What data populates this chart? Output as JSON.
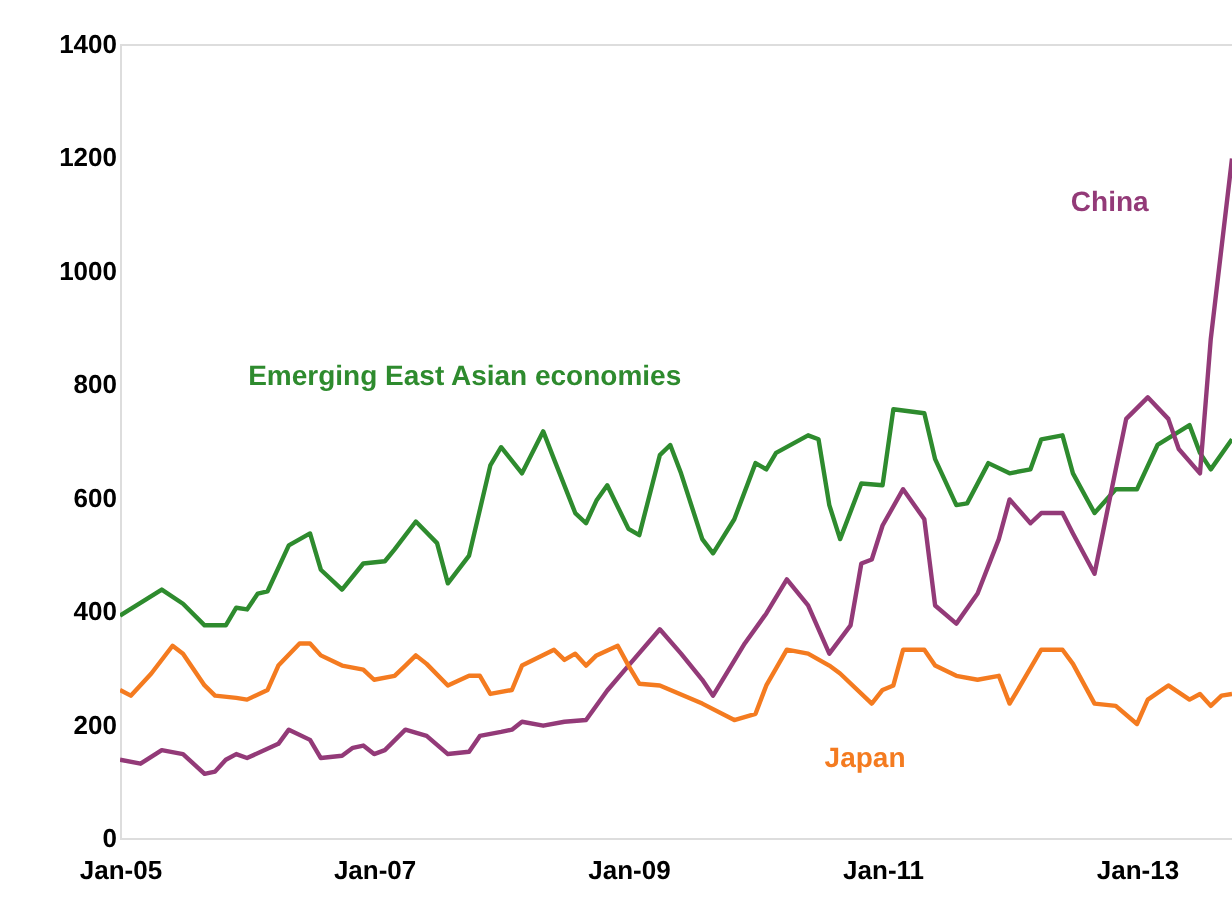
{
  "chart_data": {
    "type": "line",
    "grid": false,
    "marker": "none",
    "line_style": "solid",
    "xlim": [
      "2005-01",
      "2013-10"
    ],
    "xticks": [
      {
        "value": "2005-01",
        "label": "Jan-05"
      },
      {
        "value": "2007-01",
        "label": "Jan-07"
      },
      {
        "value": "2009-01",
        "label": "Jan-09"
      },
      {
        "value": "2011-01",
        "label": "Jan-11"
      },
      {
        "value": "2013-01",
        "label": "Jan-13"
      }
    ],
    "ylim": [
      0,
      1400
    ],
    "yticks": [
      0,
      200,
      400,
      600,
      800,
      1000,
      1200,
      1400
    ],
    "series": [
      {
        "name": "Emerging East Asian economies",
        "color": "#2e8b2e",
        "x": [
          "2005-01",
          "2005-05",
          "2005-07",
          "2005-09",
          "2005-11",
          "2005-12",
          "2006-01",
          "2006-02",
          "2006-03",
          "2006-05",
          "2006-07",
          "2006-08",
          "2006-10",
          "2006-12",
          "2007-02",
          "2007-03",
          "2007-05",
          "2007-07",
          "2007-08",
          "2007-10",
          "2007-12",
          "2008-01",
          "2008-03",
          "2008-05",
          "2008-06",
          "2008-08",
          "2008-09",
          "2008-10",
          "2008-11",
          "2009-01",
          "2009-02",
          "2009-04",
          "2009-05",
          "2009-06",
          "2009-08",
          "2009-09",
          "2009-11",
          "2010-01",
          "2010-02",
          "2010-03",
          "2010-06",
          "2010-07",
          "2010-08",
          "2010-09",
          "2010-11",
          "2011-01",
          "2011-02",
          "2011-05",
          "2011-06",
          "2011-08",
          "2011-09",
          "2011-11",
          "2012-01",
          "2012-03",
          "2012-04",
          "2012-06",
          "2012-07",
          "2012-09",
          "2012-11",
          "2013-01",
          "2013-03",
          "2013-06",
          "2013-07",
          "2013-08",
          "2013-10"
        ],
        "values": [
          392,
          438,
          413,
          375,
          375,
          406,
          403,
          431,
          435,
          516,
          537,
          473,
          438,
          484,
          488,
          509,
          558,
          520,
          449,
          498,
          657,
          689,
          643,
          717,
          668,
          573,
          555,
          595,
          622,
          545,
          534,
          675,
          693,
          643,
          527,
          502,
          562,
          661,
          650,
          679,
          710,
          703,
          587,
          527,
          625,
          622,
          756,
          749,
          668,
          587,
          590,
          661,
          643,
          650,
          703,
          710,
          643,
          573,
          615,
          615,
          693,
          728,
          679,
          650,
          703
        ]
      },
      {
        "name": "China",
        "color": "#933a78",
        "x": [
          "2005-01",
          "2005-03",
          "2005-05",
          "2005-07",
          "2005-09",
          "2005-10",
          "2005-11",
          "2005-12",
          "2006-01",
          "2006-04",
          "2006-05",
          "2006-07",
          "2006-08",
          "2006-10",
          "2006-11",
          "2006-12",
          "2007-01",
          "2007-02",
          "2007-04",
          "2007-06",
          "2007-08",
          "2007-10",
          "2007-11",
          "2008-01",
          "2008-02",
          "2008-03",
          "2008-05",
          "2008-07",
          "2008-09",
          "2008-11",
          "2009-01",
          "2009-04",
          "2009-06",
          "2009-08",
          "2009-09",
          "2009-12",
          "2010-02",
          "2010-04",
          "2010-06",
          "2010-08",
          "2010-10",
          "2010-11",
          "2010-12",
          "2011-01",
          "2011-03",
          "2011-05",
          "2011-06",
          "2011-08",
          "2011-10",
          "2011-12",
          "2012-01",
          "2012-03",
          "2012-04",
          "2012-06",
          "2012-07",
          "2012-09",
          "2012-11",
          "2012-12",
          "2013-02",
          "2013-04",
          "2013-05",
          "2013-07",
          "2013-08",
          "2013-10"
        ],
        "values": [
          138,
          131,
          155,
          148,
          113,
          117,
          138,
          148,
          141,
          166,
          191,
          173,
          141,
          145,
          159,
          163,
          148,
          155,
          191,
          180,
          148,
          152,
          180,
          187,
          191,
          205,
          198,
          205,
          208,
          260,
          304,
          368,
          325,
          279,
          251,
          343,
          396,
          456,
          410,
          325,
          375,
          484,
          491,
          551,
          615,
          562,
          410,
          378,
          431,
          527,
          597,
          555,
          573,
          573,
          537,
          466,
          650,
          739,
          777,
          739,
          686,
          643,
          880,
          1198
        ]
      },
      {
        "name": "Japan",
        "color": "#f47b20",
        "x": [
          "2005-01",
          "2005-02",
          "2005-04",
          "2005-06",
          "2005-07",
          "2005-09",
          "2005-10",
          "2005-12",
          "2006-01",
          "2006-03",
          "2006-04",
          "2006-06",
          "2006-07",
          "2006-08",
          "2006-10",
          "2006-12",
          "2007-01",
          "2007-03",
          "2007-04",
          "2007-05",
          "2007-06",
          "2007-08",
          "2007-10",
          "2007-11",
          "2007-12",
          "2008-02",
          "2008-03",
          "2008-06",
          "2008-07",
          "2008-08",
          "2008-09",
          "2008-10",
          "2008-12",
          "2009-01",
          "2009-02",
          "2009-04",
          "2009-08",
          "2009-11",
          "2010-01",
          "2010-02",
          "2010-04",
          "2010-06",
          "2010-08",
          "2010-09",
          "2010-12",
          "2011-01",
          "2011-02",
          "2011-03",
          "2011-05",
          "2011-06",
          "2011-08",
          "2011-10",
          "2011-12",
          "2012-01",
          "2012-02",
          "2012-04",
          "2012-06",
          "2012-07",
          "2012-09",
          "2012-11",
          "2013-01",
          "2013-02",
          "2013-04",
          "2013-06",
          "2013-07",
          "2013-08",
          "2013-09",
          "2013-10"
        ],
        "values": [
          261,
          251,
          290,
          339,
          325,
          269,
          251,
          247,
          244,
          261,
          304,
          343,
          343,
          322,
          304,
          297,
          279,
          286,
          304,
          322,
          307,
          269,
          286,
          286,
          254,
          261,
          304,
          332,
          314,
          325,
          304,
          322,
          339,
          304,
          272,
          269,
          237,
          208,
          219,
          269,
          332,
          325,
          304,
          290,
          237,
          261,
          269,
          332,
          332,
          304,
          286,
          279,
          286,
          237,
          269,
          332,
          332,
          307,
          237,
          233,
          201,
          244,
          269,
          244,
          254,
          233,
          251,
          254
        ]
      }
    ]
  }
}
